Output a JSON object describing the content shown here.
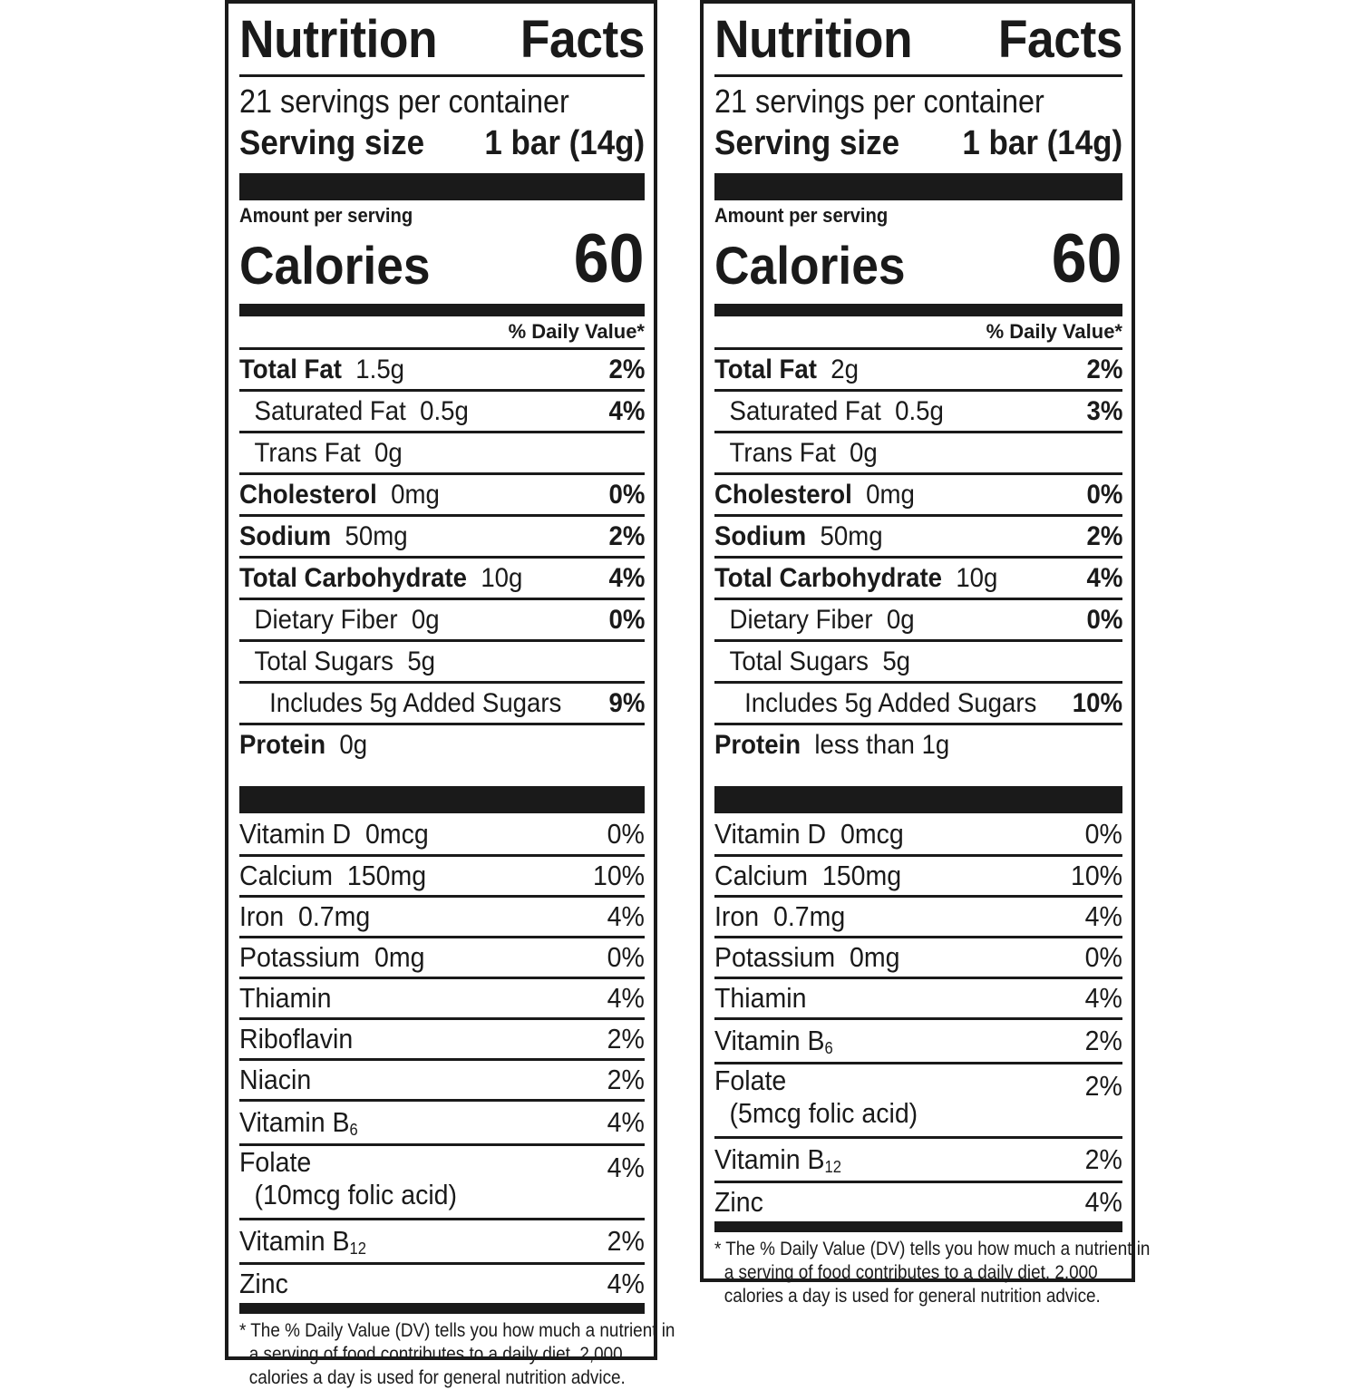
{
  "labels": [
    {
      "title_left": "Nutrition",
      "title_right": "Facts",
      "servings": "21 servings per container",
      "serving_size_label": "Serving size",
      "serving_size_value": "1 bar (14g)",
      "amount_per_serving": "Amount per serving",
      "calories_label": "Calories",
      "calories_value": "60",
      "dv_header": "% Daily Value*",
      "nutrients": [
        {
          "name": "Total Fat",
          "amount": "1.5g",
          "dv": "2%"
        },
        {
          "name": "Saturated Fat",
          "amount": "0.5g",
          "dv": "4%"
        },
        {
          "name": "Trans Fat",
          "amount": "0g",
          "dv": ""
        },
        {
          "name": "Cholesterol",
          "amount": "0mg",
          "dv": "0%"
        },
        {
          "name": "Sodium",
          "amount": "50mg",
          "dv": "2%"
        },
        {
          "name": "Total Carbohydrate",
          "amount": "10g",
          "dv": "4%"
        },
        {
          "name": "Dietary Fiber",
          "amount": "0g",
          "dv": "0%"
        },
        {
          "name": "Total Sugars",
          "amount": "5g",
          "dv": ""
        },
        {
          "name": "Includes 5g Added Sugars",
          "amount": "",
          "dv": "9%"
        },
        {
          "name": "Protein",
          "amount": "0g",
          "dv": ""
        }
      ],
      "vitamins": [
        {
          "name": "Vitamin D",
          "amount": "0mcg",
          "dv": "0%"
        },
        {
          "name": "Calcium",
          "amount": "150mg",
          "dv": "10%"
        },
        {
          "name": "Iron",
          "amount": "0.7mg",
          "dv": "4%"
        },
        {
          "name": "Potassium",
          "amount": "0mg",
          "dv": "0%"
        },
        {
          "name": "Thiamin",
          "amount": "",
          "dv": "4%"
        },
        {
          "name": "Riboflavin",
          "amount": "",
          "dv": "2%"
        },
        {
          "name": "Niacin",
          "amount": "",
          "dv": "2%"
        },
        {
          "name": "Vitamin B",
          "sub": "6",
          "dv": "4%"
        },
        {
          "name": "Folate",
          "sub_line": "(10mcg folic acid)",
          "dv": "4%"
        },
        {
          "name": "Vitamin B",
          "sub": "12",
          "dv": "2%"
        },
        {
          "name": "Zinc",
          "amount": "",
          "dv": "4%"
        }
      ],
      "footnote": [
        "* The % Daily Value (DV) tells you how much a nutrient in",
        "a serving of food contributes to a daily diet. 2,000",
        "calories a day is used for general nutrition advice."
      ]
    },
    {
      "title_left": "Nutrition",
      "title_right": "Facts",
      "servings": "21 servings per container",
      "serving_size_label": "Serving size",
      "serving_size_value": "1 bar (14g)",
      "amount_per_serving": "Amount per serving",
      "calories_label": "Calories",
      "calories_value": "60",
      "dv_header": "% Daily Value*",
      "nutrients": [
        {
          "name": "Total Fat",
          "amount": "2g",
          "dv": "2%"
        },
        {
          "name": "Saturated Fat",
          "amount": "0.5g",
          "dv": "3%"
        },
        {
          "name": "Trans Fat",
          "amount": "0g",
          "dv": ""
        },
        {
          "name": "Cholesterol",
          "amount": "0mg",
          "dv": "0%"
        },
        {
          "name": "Sodium",
          "amount": "50mg",
          "dv": "2%"
        },
        {
          "name": "Total Carbohydrate",
          "amount": "10g",
          "dv": "4%"
        },
        {
          "name": "Dietary Fiber",
          "amount": "0g",
          "dv": "0%"
        },
        {
          "name": "Total Sugars",
          "amount": "5g",
          "dv": ""
        },
        {
          "name": "Includes 5g Added Sugars",
          "amount": "",
          "dv": "10%"
        },
        {
          "name": "Protein",
          "amount": "less than 1g",
          "dv": ""
        }
      ],
      "vitamins": [
        {
          "name": "Vitamin D",
          "amount": "0mcg",
          "dv": "0%"
        },
        {
          "name": "Calcium",
          "amount": "150mg",
          "dv": "10%"
        },
        {
          "name": "Iron",
          "amount": "0.7mg",
          "dv": "4%"
        },
        {
          "name": "Potassium",
          "amount": "0mg",
          "dv": "0%"
        },
        {
          "name": "Thiamin",
          "amount": "",
          "dv": "4%"
        },
        {
          "name": "Vitamin B",
          "sub": "6",
          "dv": "2%"
        },
        {
          "name": "Folate",
          "sub_line": "(5mcg folic acid)",
          "dv": "2%"
        },
        {
          "name": "Vitamin B",
          "sub": "12",
          "dv": "2%"
        },
        {
          "name": "Zinc",
          "amount": "",
          "dv": "4%"
        }
      ],
      "footnote": [
        "* The % Daily Value (DV) tells you how much a nutrient in",
        "a serving of food contributes to a daily diet. 2,000",
        "calories a day is used for general nutrition advice."
      ]
    }
  ]
}
